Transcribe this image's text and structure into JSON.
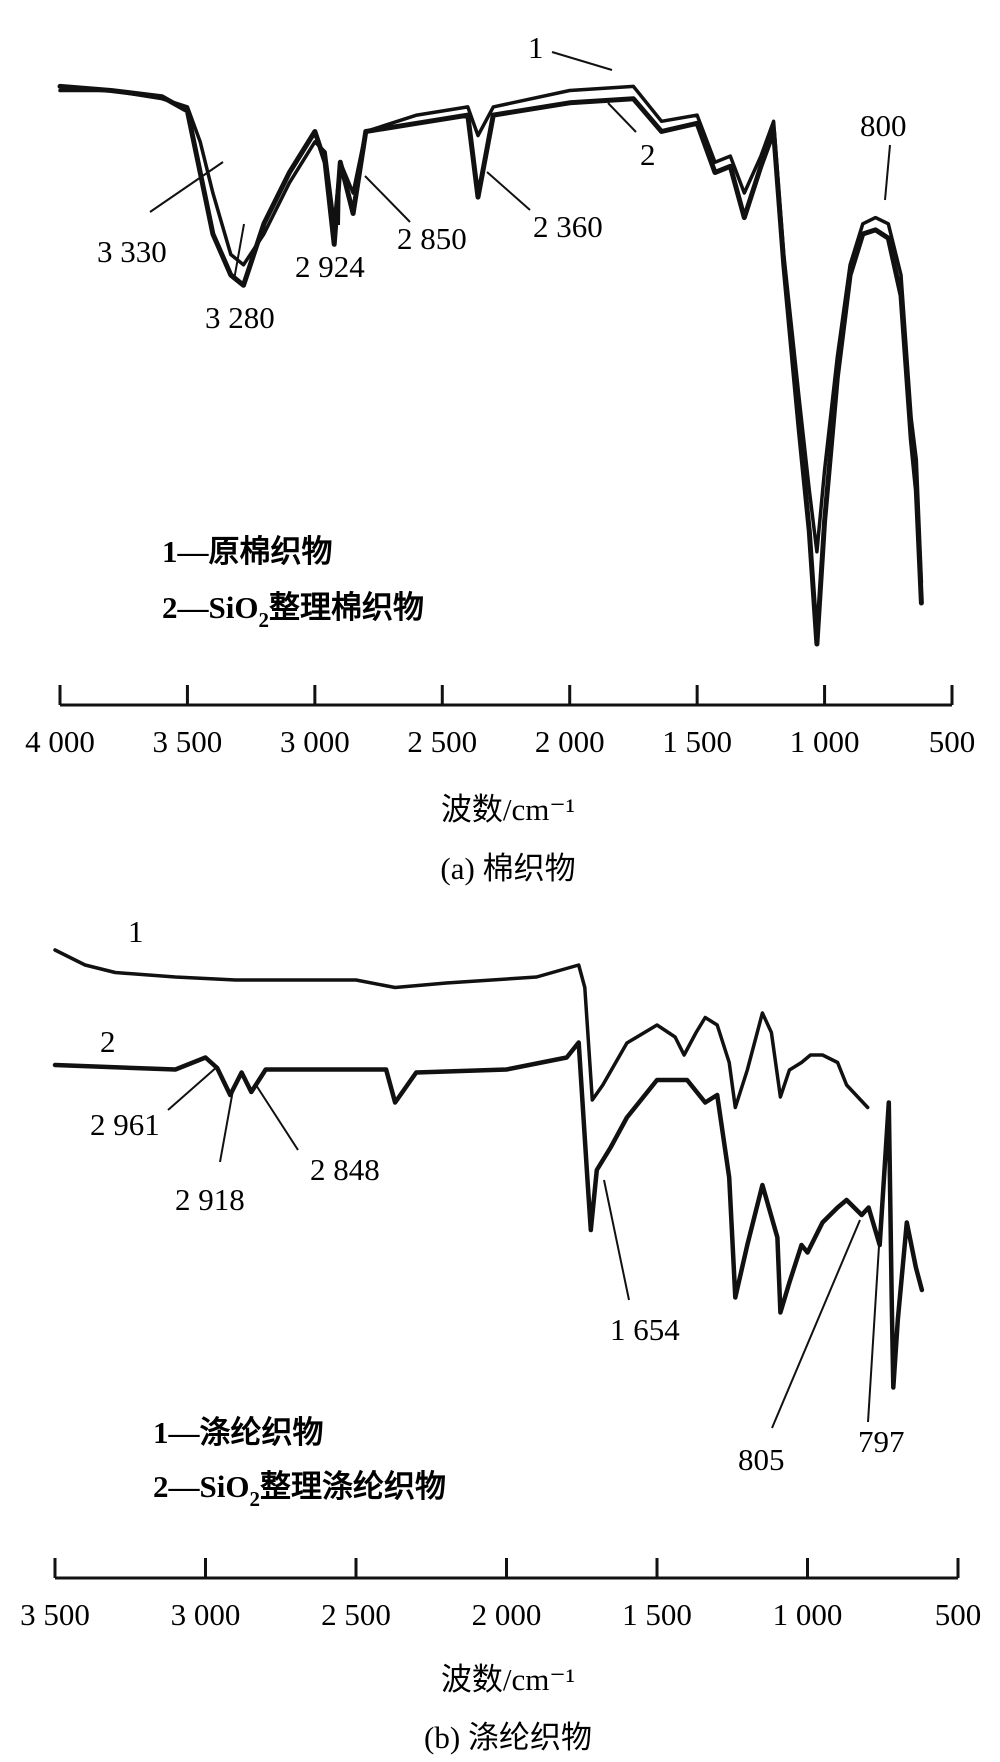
{
  "chart_data": [
    {
      "type": "line",
      "caption": "(a) 棉织物",
      "xlabel": "波数/cm⁻¹",
      "xlim": [
        4000,
        500
      ],
      "x_reversed": true,
      "x_ticks": [
        {
          "value": 4000,
          "label": "4 000"
        },
        {
          "value": 3500,
          "label": "3 500"
        },
        {
          "value": 3000,
          "label": "3 000"
        },
        {
          "value": 2500,
          "label": "2 500"
        },
        {
          "value": 2000,
          "label": "2 000"
        },
        {
          "value": 1500,
          "label": "1 500"
        },
        {
          "value": 1000,
          "label": "1 000"
        },
        {
          "value": 500,
          "label": "500"
        }
      ],
      "legend": {
        "entries": [
          {
            "text": "1—原棉织物"
          },
          {
            "prefix": "2—SiO",
            "sub": "2",
            "suffix": "整理棉织物"
          }
        ]
      },
      "series": [
        {
          "name": "1",
          "points": [
            [
              4000,
              0.1
            ],
            [
              3800,
              0.1
            ],
            [
              3600,
              0.14
            ],
            [
              3500,
              0.18
            ],
            [
              3450,
              0.35
            ],
            [
              3400,
              0.6
            ],
            [
              3330,
              0.9
            ],
            [
              3280,
              0.95
            ],
            [
              3200,
              0.8
            ],
            [
              3100,
              0.55
            ],
            [
              3000,
              0.35
            ],
            [
              2960,
              0.4
            ],
            [
              2924,
              0.75
            ],
            [
              2900,
              0.45
            ],
            [
              2850,
              0.6
            ],
            [
              2800,
              0.3
            ],
            [
              2600,
              0.22
            ],
            [
              2400,
              0.18
            ],
            [
              2360,
              0.32
            ],
            [
              2300,
              0.18
            ],
            [
              2000,
              0.1
            ],
            [
              1750,
              0.08
            ],
            [
              1640,
              0.25
            ],
            [
              1500,
              0.22
            ],
            [
              1430,
              0.45
            ],
            [
              1370,
              0.42
            ],
            [
              1315,
              0.6
            ],
            [
              1250,
              0.42
            ],
            [
              1200,
              0.25
            ],
            [
              1160,
              0.9
            ],
            [
              1100,
              1.6
            ],
            [
              1060,
              2.05
            ],
            [
              1030,
              2.35
            ],
            [
              1000,
              1.95
            ],
            [
              950,
              1.4
            ],
            [
              900,
              0.95
            ],
            [
              850,
              0.75
            ],
            [
              800,
              0.72
            ],
            [
              750,
              0.75
            ],
            [
              700,
              1.0
            ],
            [
              660,
              1.7
            ],
            [
              640,
              1.9
            ],
            [
              620,
              2.5
            ]
          ]
        },
        {
          "name": "2",
          "points": [
            [
              4000,
              0.08
            ],
            [
              3800,
              0.1
            ],
            [
              3600,
              0.13
            ],
            [
              3500,
              0.2
            ],
            [
              3450,
              0.5
            ],
            [
              3400,
              0.8
            ],
            [
              3330,
              1.0
            ],
            [
              3280,
              1.05
            ],
            [
              3200,
              0.75
            ],
            [
              3100,
              0.5
            ],
            [
              3000,
              0.3
            ],
            [
              2960,
              0.45
            ],
            [
              2924,
              0.85
            ],
            [
              2900,
              0.45
            ],
            [
              2850,
              0.7
            ],
            [
              2800,
              0.3
            ],
            [
              2600,
              0.26
            ],
            [
              2400,
              0.22
            ],
            [
              2360,
              0.62
            ],
            [
              2300,
              0.22
            ],
            [
              2000,
              0.16
            ],
            [
              1750,
              0.14
            ],
            [
              1640,
              0.3
            ],
            [
              1500,
              0.26
            ],
            [
              1430,
              0.5
            ],
            [
              1370,
              0.47
            ],
            [
              1315,
              0.72
            ],
            [
              1250,
              0.47
            ],
            [
              1200,
              0.3
            ],
            [
              1160,
              0.95
            ],
            [
              1100,
              1.75
            ],
            [
              1060,
              2.25
            ],
            [
              1030,
              2.8
            ],
            [
              1000,
              2.2
            ],
            [
              950,
              1.5
            ],
            [
              900,
              1.0
            ],
            [
              850,
              0.8
            ],
            [
              800,
              0.78
            ],
            [
              750,
              0.82
            ],
            [
              700,
              1.1
            ],
            [
              660,
              1.8
            ],
            [
              640,
              2.05
            ],
            [
              620,
              2.6
            ]
          ]
        }
      ],
      "annotations": [
        {
          "label": "1",
          "type": "series-id"
        },
        {
          "label": "2",
          "type": "series-id"
        },
        {
          "label": "3 330",
          "x": 3330
        },
        {
          "label": "3 280",
          "x": 3280
        },
        {
          "label": "2 924",
          "x": 2924
        },
        {
          "label": "2 850",
          "x": 2850
        },
        {
          "label": "2 360",
          "x": 2360
        },
        {
          "label": "800",
          "x": 800
        }
      ]
    },
    {
      "type": "line",
      "caption": "(b) 涤纶织物",
      "xlabel": "波数/cm⁻¹",
      "xlim": [
        3500,
        500
      ],
      "x_reversed": true,
      "x_ticks": [
        {
          "value": 3500,
          "label": "3 500"
        },
        {
          "value": 3000,
          "label": "3 000"
        },
        {
          "value": 2500,
          "label": "2 500"
        },
        {
          "value": 2000,
          "label": "2 000"
        },
        {
          "value": 1500,
          "label": "1 500"
        },
        {
          "value": 1000,
          "label": "1 000"
        },
        {
          "value": 500,
          "label": "500"
        }
      ],
      "legend": {
        "entries": [
          {
            "text": "1—涤纶织物"
          },
          {
            "prefix": "2—SiO",
            "sub": "2",
            "suffix": "整理涤纶织物"
          }
        ]
      },
      "series": [
        {
          "name": "1",
          "points": [
            [
              3500,
              0.0
            ],
            [
              3400,
              0.1
            ],
            [
              3300,
              0.15
            ],
            [
              3100,
              0.18
            ],
            [
              2900,
              0.2
            ],
            [
              2500,
              0.2
            ],
            [
              2370,
              0.25
            ],
            [
              2200,
              0.22
            ],
            [
              1900,
              0.18
            ],
            [
              1760,
              0.1
            ],
            [
              1740,
              0.25
            ],
            [
              1715,
              1.0
            ],
            [
              1680,
              0.9
            ],
            [
              1600,
              0.62
            ],
            [
              1500,
              0.5
            ],
            [
              1440,
              0.58
            ],
            [
              1410,
              0.7
            ],
            [
              1370,
              0.55
            ],
            [
              1340,
              0.45
            ],
            [
              1300,
              0.5
            ],
            [
              1260,
              0.75
            ],
            [
              1240,
              1.05
            ],
            [
              1200,
              0.8
            ],
            [
              1150,
              0.42
            ],
            [
              1120,
              0.55
            ],
            [
              1090,
              0.98
            ],
            [
              1060,
              0.8
            ],
            [
              1020,
              0.75
            ],
            [
              990,
              0.7
            ],
            [
              950,
              0.7
            ],
            [
              900,
              0.75
            ],
            [
              870,
              0.9
            ],
            [
              800,
              1.05
            ]
          ]
        },
        {
          "name": "2",
          "points": [
            [
              3500,
              0.0
            ],
            [
              3100,
              0.03
            ],
            [
              3000,
              -0.05
            ],
            [
              2961,
              0.02
            ],
            [
              2918,
              0.2
            ],
            [
              2880,
              0.05
            ],
            [
              2848,
              0.18
            ],
            [
              2800,
              0.03
            ],
            [
              2400,
              0.03
            ],
            [
              2370,
              0.25
            ],
            [
              2300,
              0.05
            ],
            [
              2000,
              0.03
            ],
            [
              1800,
              -0.05
            ],
            [
              1760,
              -0.15
            ],
            [
              1730,
              0.8
            ],
            [
              1720,
              1.1
            ],
            [
              1700,
              0.7
            ],
            [
              1654,
              0.55
            ],
            [
              1600,
              0.35
            ],
            [
              1500,
              0.1
            ],
            [
              1400,
              0.1
            ],
            [
              1340,
              0.25
            ],
            [
              1300,
              0.2
            ],
            [
              1260,
              0.75
            ],
            [
              1240,
              1.55
            ],
            [
              1200,
              1.2
            ],
            [
              1150,
              0.8
            ],
            [
              1100,
              1.15
            ],
            [
              1090,
              1.65
            ],
            [
              1060,
              1.45
            ],
            [
              1020,
              1.2
            ],
            [
              1000,
              1.25
            ],
            [
              950,
              1.05
            ],
            [
              900,
              0.95
            ],
            [
              870,
              0.9
            ],
            [
              820,
              1.0
            ],
            [
              797,
              0.95
            ],
            [
              760,
              1.2
            ],
            [
              730,
              0.25
            ],
            [
              720,
              1.6
            ],
            [
              715,
              2.15
            ],
            [
              700,
              1.7
            ],
            [
              670,
              1.05
            ],
            [
              640,
              1.35
            ],
            [
              620,
              1.5
            ]
          ]
        }
      ],
      "annotations": [
        {
          "label": "1",
          "type": "series-id"
        },
        {
          "label": "2",
          "type": "series-id"
        },
        {
          "label": "2 961",
          "x": 2961
        },
        {
          "label": "2 918",
          "x": 2918
        },
        {
          "label": "2 848",
          "x": 2848
        },
        {
          "label": "1 654",
          "x": 1654
        },
        {
          "label": "805",
          "x": 805
        },
        {
          "label": "797",
          "x": 797
        }
      ]
    }
  ]
}
